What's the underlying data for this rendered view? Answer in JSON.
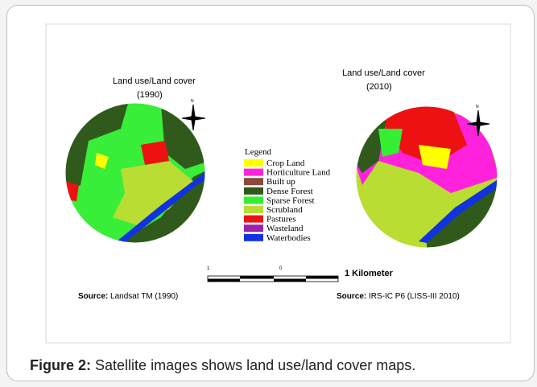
{
  "maps": [
    {
      "title": "Land use/Land cover",
      "year": "(1990)",
      "source_label": "Source:",
      "source": "Landsat TM (1990)"
    },
    {
      "title": "Land use/Land cover",
      "year": "(2010)",
      "source_label": "Source:",
      "source": "IRS-IC P6 (LISS-III 2010)"
    }
  ],
  "north_label": "N",
  "legend": {
    "title": "Legend",
    "items": [
      {
        "label": "Crop Land",
        "color": "#ffff00"
      },
      {
        "label": "Horticulture Land",
        "color": "#ff22dd"
      },
      {
        "label": "Built up",
        "color": "#8b4a3a"
      },
      {
        "label": "Dense Forest",
        "color": "#2f5a1c"
      },
      {
        "label": "Sparse Forest",
        "color": "#33ee33"
      },
      {
        "label": "Scrubland",
        "color": "#b9dd33"
      },
      {
        "label": "Pastures",
        "color": "#ee1111"
      },
      {
        "label": "Wasteland",
        "color": "#9a22aa"
      },
      {
        "label": "Waterbodies",
        "color": "#1133dd"
      }
    ]
  },
  "scale_bar": {
    "ticks": [
      "1",
      "0"
    ],
    "label": "1 Kilometer"
  },
  "caption": {
    "label": "Figure 2:",
    "text": "Satellite images shows land use/land cover maps."
  }
}
